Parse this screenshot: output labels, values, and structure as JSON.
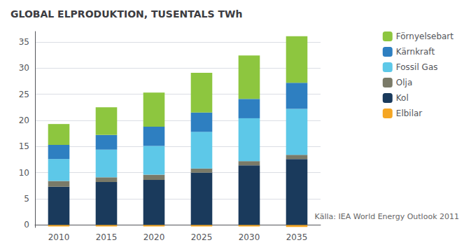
{
  "chart_data": {
    "type": "bar",
    "title": "GLOBAL ELPRODUKTION, TUSENTALS TWh",
    "source": "Källa: IEA World Energy Outlook 2011",
    "categories": [
      "2010",
      "2015",
      "2020",
      "2025",
      "2030",
      "2035"
    ],
    "series": [
      {
        "name": "Elbilar",
        "color": "#F5A623",
        "values": [
          -0.3,
          -0.3,
          -0.3,
          -0.3,
          -0.3,
          -0.4
        ]
      },
      {
        "name": "Kol",
        "color": "#1A3A5C",
        "values": [
          7.3,
          8.2,
          8.6,
          10.0,
          11.4,
          12.6
        ]
      },
      {
        "name": "Olja",
        "color": "#7A7A68",
        "values": [
          1.1,
          0.9,
          1.0,
          0.8,
          0.8,
          0.8
        ]
      },
      {
        "name": "Fossil Gas",
        "color": "#5DC8E8",
        "values": [
          4.2,
          5.3,
          5.5,
          7.0,
          8.2,
          8.8
        ]
      },
      {
        "name": "Kärnkraft",
        "color": "#2E7FC1",
        "values": [
          2.7,
          2.8,
          3.7,
          3.7,
          3.7,
          5.0
        ]
      },
      {
        "name": "Förnyelsebart",
        "color": "#8DC63F",
        "values": [
          4.0,
          5.3,
          6.5,
          7.6,
          8.3,
          8.9
        ]
      }
    ],
    "stacked": true,
    "ylim": [
      -0.5,
      37
    ],
    "yticks": [
      0,
      5,
      10,
      15,
      20,
      25,
      30,
      35
    ],
    "grid": true,
    "legend": "upper right"
  }
}
